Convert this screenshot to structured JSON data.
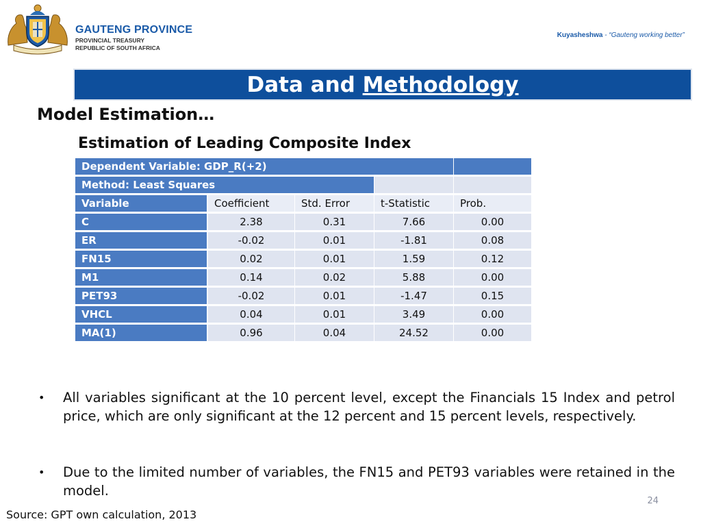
{
  "header": {
    "org_name": "GAUTENG PROVINCE",
    "org_sub1": "PROVINCIAL TREASURY",
    "org_sub2": "REPUBLIC OF SOUTH AFRICA",
    "tagline_brand": "Kuyasheshwa",
    "tagline_quote": " - “Gauteng working better”",
    "colors": {
      "brand_blue": "#0e4f9c",
      "table_dark": "#4a7bc2",
      "table_light": "#dfe4f0"
    }
  },
  "title": {
    "part1": "Data and ",
    "part2": "Methodology"
  },
  "section_heading": "Model Estimation…",
  "table_caption": "Estimation of Leading Composite Index",
  "table": {
    "dependent": "Dependent Variable: GDP_R(+2)",
    "method": "Method: Least Squares",
    "headers": [
      "Variable",
      "Coefficient",
      "Std. Error",
      "t-Statistic",
      "Prob."
    ],
    "rows": [
      [
        "C",
        "2.38",
        "0.31",
        "7.66",
        "0.00"
      ],
      [
        "ER",
        "-0.02",
        "0.01",
        "-1.81",
        "0.08"
      ],
      [
        "FN15",
        "0.02",
        "0.01",
        "1.59",
        "0.12"
      ],
      [
        "M1",
        "0.14",
        "0.02",
        "5.88",
        "0.00"
      ],
      [
        "PET93",
        "-0.02",
        "0.01",
        "-1.47",
        "0.15"
      ],
      [
        "VHCL",
        "0.04",
        "0.01",
        "3.49",
        "0.00"
      ],
      [
        "MA(1)",
        "0.96",
        "0.04",
        "24.52",
        "0.00"
      ]
    ]
  },
  "bullets": [
    "All variables significant at the 10 percent level, except the Financials 15 Index and petrol price, which are only significant at the 12 percent and 15 percent levels, respectively.",
    "Due to the limited number of variables, the FN15 and PET93 variables were retained in the model."
  ],
  "bullet_symbol": "•",
  "page_number": "24",
  "source": "Source: GPT own calculation, 2013",
  "icons": {
    "logo": "coat-of-arms-logo"
  }
}
